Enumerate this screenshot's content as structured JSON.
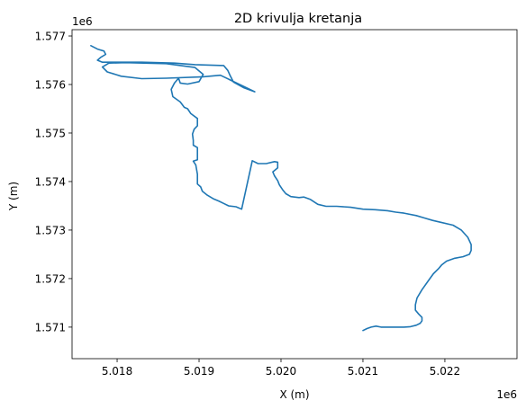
{
  "chart_data": {
    "type": "line",
    "title": "2D krivulja kretanja",
    "xlabel": "X (m)",
    "ylabel": "Y (m)",
    "x_offset_label": "1e6",
    "y_offset_label": "1e6",
    "xlim": [
      5.01745,
      5.02288
    ],
    "ylim": [
      1.57035,
      1.57713
    ],
    "x_ticks": [
      5.018,
      5.019,
      5.02,
      5.021,
      5.022
    ],
    "x_tick_labels": [
      "5.018",
      "5.019",
      "5.020",
      "5.021",
      "5.022"
    ],
    "y_ticks": [
      1.571,
      1.572,
      1.573,
      1.574,
      1.575,
      1.576,
      1.577
    ],
    "y_tick_labels": [
      "1.571",
      "1.572",
      "1.573",
      "1.574",
      "1.575",
      "1.576",
      "1.577"
    ],
    "grid": false,
    "series_color": "#1f77b4",
    "series": [
      {
        "points": [
          [
            5.01768,
            1.5768
          ],
          [
            5.01776,
            1.57673
          ],
          [
            5.01784,
            1.57669
          ],
          [
            5.01786,
            1.57662
          ],
          [
            5.0178,
            1.57656
          ],
          [
            5.01776,
            1.5765
          ],
          [
            5.01782,
            1.57646
          ],
          [
            5.018,
            1.57646
          ],
          [
            5.0183,
            1.57646
          ],
          [
            5.0187,
            1.57644
          ],
          [
            5.01895,
            1.57641
          ],
          [
            5.0193,
            1.57639
          ],
          [
            5.01935,
            1.57629
          ],
          [
            5.01938,
            1.57618
          ],
          [
            5.01942,
            1.57605
          ],
          [
            5.01955,
            1.57593
          ],
          [
            5.01968,
            1.57585
          ],
          [
            5.01926,
            1.57619
          ],
          [
            5.01905,
            1.57616
          ],
          [
            5.0186,
            1.57613
          ],
          [
            5.0183,
            1.57612
          ],
          [
            5.01805,
            1.57617
          ],
          [
            5.01788,
            1.57626
          ],
          [
            5.01782,
            1.57636
          ],
          [
            5.0179,
            1.57644
          ],
          [
            5.0181,
            1.57645
          ],
          [
            5.0186,
            1.57643
          ],
          [
            5.01895,
            1.57635
          ],
          [
            5.01905,
            1.57621
          ],
          [
            5.019,
            1.57606
          ],
          [
            5.01886,
            1.57601
          ],
          [
            5.01877,
            1.57603
          ],
          [
            5.01875,
            1.57613
          ],
          [
            5.0187,
            1.57603
          ],
          [
            5.01866,
            1.5759
          ],
          [
            5.01868,
            1.57575
          ],
          [
            5.01877,
            1.57564
          ],
          [
            5.01882,
            1.57553
          ],
          [
            5.01886,
            1.5755
          ],
          [
            5.0189,
            1.5754
          ],
          [
            5.01898,
            1.5753
          ],
          [
            5.01898,
            1.57515
          ],
          [
            5.01894,
            1.57508
          ],
          [
            5.01892,
            1.57498
          ],
          [
            5.01893,
            1.57485
          ],
          [
            5.01893,
            1.57475
          ],
          [
            5.01898,
            1.5747
          ],
          [
            5.01898,
            1.57445
          ],
          [
            5.01893,
            1.57442
          ],
          [
            5.01896,
            1.57434
          ],
          [
            5.01898,
            1.57415
          ],
          [
            5.01898,
            1.5741
          ],
          [
            5.01898,
            1.57395
          ],
          [
            5.01902,
            1.57389
          ],
          [
            5.01904,
            1.5738
          ],
          [
            5.0191,
            1.57372
          ],
          [
            5.01918,
            1.57364
          ],
          [
            5.01924,
            1.5736
          ],
          [
            5.0193,
            1.57355
          ],
          [
            5.01936,
            1.5735
          ],
          [
            5.01945,
            1.57348
          ],
          [
            5.01952,
            1.57343
          ],
          [
            5.01965,
            1.57443
          ],
          [
            5.01972,
            1.57437
          ],
          [
            5.01982,
            1.57437
          ],
          [
            5.01992,
            1.57441
          ],
          [
            5.01996,
            1.5744
          ],
          [
            5.01996,
            1.57428
          ],
          [
            5.0199,
            1.5742
          ],
          [
            5.01992,
            1.57412
          ],
          [
            5.01996,
            1.57402
          ],
          [
            5.01998,
            1.57393
          ],
          [
            5.02002,
            1.57383
          ],
          [
            5.02006,
            1.57375
          ],
          [
            5.02012,
            1.57369
          ],
          [
            5.02022,
            1.57367
          ],
          [
            5.02028,
            1.57368
          ],
          [
            5.02036,
            1.57363
          ],
          [
            5.02045,
            1.57353
          ],
          [
            5.02055,
            1.57349
          ],
          [
            5.02068,
            1.57349
          ],
          [
            5.02085,
            1.57347
          ],
          [
            5.021,
            1.57343
          ],
          [
            5.02115,
            1.57342
          ],
          [
            5.0213,
            1.5734
          ],
          [
            5.0214,
            1.57337
          ],
          [
            5.0215,
            1.57335
          ],
          [
            5.02165,
            1.5733
          ],
          [
            5.02175,
            1.57325
          ],
          [
            5.02185,
            1.5732
          ],
          [
            5.02195,
            1.57316
          ],
          [
            5.0221,
            1.5731
          ],
          [
            5.0222,
            1.573
          ],
          [
            5.02228,
            1.57285
          ],
          [
            5.02232,
            1.5727
          ],
          [
            5.02232,
            1.57258
          ],
          [
            5.0223,
            1.5725
          ],
          [
            5.02222,
            1.57245
          ],
          [
            5.02212,
            1.57242
          ],
          [
            5.02202,
            1.57236
          ],
          [
            5.02196,
            1.57228
          ],
          [
            5.02192,
            1.5722
          ],
          [
            5.02186,
            1.5721
          ],
          [
            5.0218,
            1.57196
          ],
          [
            5.02172,
            1.57177
          ],
          [
            5.02166,
            1.5716
          ],
          [
            5.02164,
            1.57146
          ],
          [
            5.02164,
            1.57135
          ],
          [
            5.02168,
            1.57127
          ],
          [
            5.02172,
            1.5712
          ],
          [
            5.02172,
            1.57113
          ],
          [
            5.0217,
            1.57108
          ],
          [
            5.02165,
            1.57104
          ],
          [
            5.02158,
            1.57101
          ],
          [
            5.0215,
            1.571
          ],
          [
            5.02142,
            1.571
          ],
          [
            5.0213,
            1.571
          ],
          [
            5.02122,
            1.571
          ],
          [
            5.02116,
            1.57102
          ],
          [
            5.0211,
            1.571
          ],
          [
            5.02105,
            1.57097
          ],
          [
            5.021,
            1.57093
          ]
        ]
      }
    ]
  }
}
